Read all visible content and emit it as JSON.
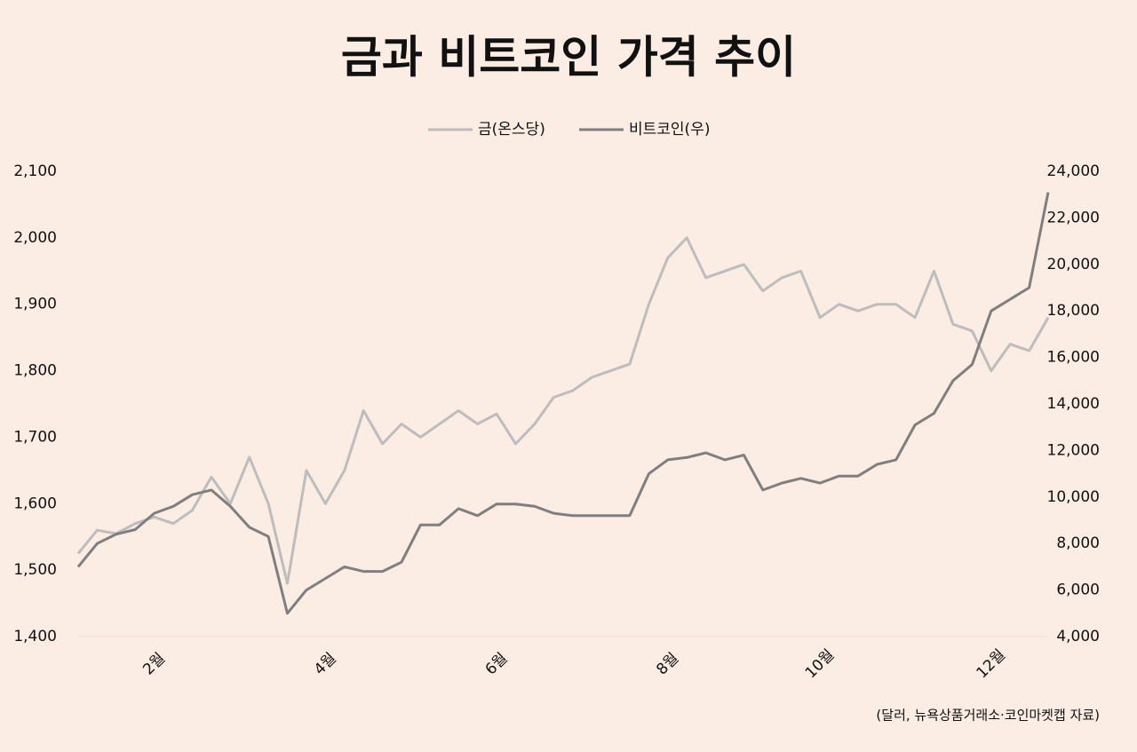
{
  "chart_data": {
    "type": "line",
    "title": "금과 비트코인 가격 추이",
    "note": "(달러, 뉴욕상품거래소·코인마켓캡   자료)",
    "categories": [
      null,
      null,
      null,
      null,
      "2월",
      null,
      null,
      null,
      null,
      null,
      null,
      null,
      null,
      "4월",
      null,
      null,
      null,
      null,
      null,
      null,
      null,
      null,
      "6월",
      null,
      null,
      null,
      null,
      null,
      null,
      null,
      null,
      "8월",
      null,
      null,
      null,
      null,
      null,
      null,
      null,
      "10월",
      null,
      null,
      null,
      null,
      null,
      null,
      null,
      null,
      "12월",
      null,
      null,
      null
    ],
    "series": [
      {
        "name": "금(온스당)",
        "color": "#bdbdbd",
        "axis": "y",
        "values": [
          1525,
          1560,
          1555,
          1570,
          1580,
          1570,
          1590,
          1640,
          1600,
          1670,
          1600,
          1480,
          1650,
          1600,
          1650,
          1740,
          1690,
          1720,
          1700,
          1720,
          1740,
          1720,
          1735,
          1690,
          1720,
          1760,
          1770,
          1790,
          1800,
          1810,
          1900,
          1970,
          2000,
          1940,
          1950,
          1960,
          1920,
          1940,
          1950,
          1880,
          1900,
          1890,
          1900,
          1900,
          1880,
          1950,
          1870,
          1860,
          1800,
          1840,
          1830,
          1880
        ]
      },
      {
        "name": "비트코인(우)",
        "color": "#7f7f7f",
        "axis": "y2",
        "values": [
          7000,
          8000,
          8400,
          8600,
          9300,
          9600,
          10100,
          10300,
          9600,
          8700,
          8300,
          5000,
          6000,
          6500,
          7000,
          6800,
          6800,
          7200,
          8800,
          8800,
          9500,
          9200,
          9700,
          9700,
          9600,
          9300,
          9200,
          9200,
          9200,
          9200,
          11000,
          11600,
          11700,
          11900,
          11600,
          11800,
          10300,
          10600,
          10800,
          10600,
          10900,
          10900,
          11400,
          11600,
          13100,
          13600,
          15000,
          15700,
          18000,
          18500,
          19000,
          23100
        ]
      }
    ],
    "ylim": [
      1400,
      2100
    ],
    "yticks": [
      {
        "value": 1400,
        "label": "1,400"
      },
      {
        "value": 1500,
        "label": "1,500"
      },
      {
        "value": 1600,
        "label": "1,600"
      },
      {
        "value": 1700,
        "label": "1,700"
      },
      {
        "value": 1800,
        "label": "1,800"
      },
      {
        "value": 1900,
        "label": "1,900"
      },
      {
        "value": 2000,
        "label": "2,000"
      },
      {
        "value": 2100,
        "label": "2,100"
      }
    ],
    "y2lim": [
      4000,
      24000
    ],
    "y2ticks": [
      {
        "value": 4000,
        "label": "4,000"
      },
      {
        "value": 6000,
        "label": "6,000"
      },
      {
        "value": 8000,
        "label": "8,000"
      },
      {
        "value": 10000,
        "label": "10,000"
      },
      {
        "value": 12000,
        "label": "12,000"
      },
      {
        "value": 14000,
        "label": "14,000"
      },
      {
        "value": 16000,
        "label": "16,000"
      },
      {
        "value": 18000,
        "label": "18,000"
      },
      {
        "value": 20000,
        "label": "20,000"
      },
      {
        "value": 22000,
        "label": "22,000"
      },
      {
        "value": 24000,
        "label": "24,000"
      }
    ],
    "grid": false
  }
}
